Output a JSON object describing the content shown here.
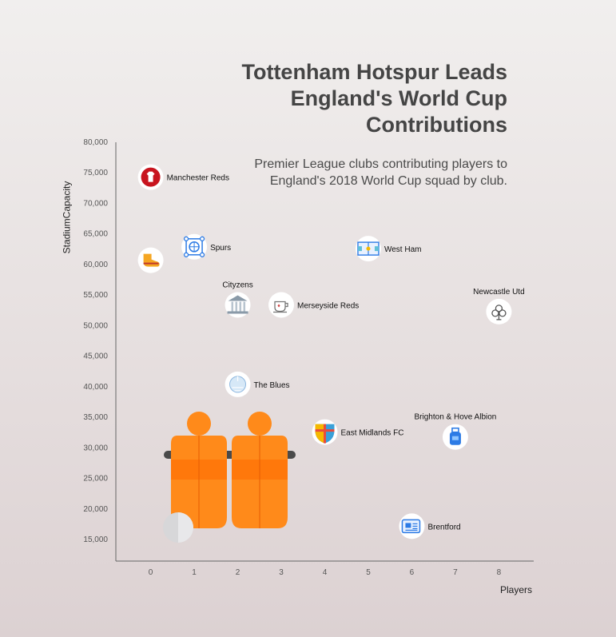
{
  "chart_data": {
    "type": "scatter",
    "title": "Tottenham Hotspur Leads England's World Cup Contributions",
    "subtitle": "Premier League clubs contributing players to England's 2018 World Cup squad by club.",
    "xlabel": "Players",
    "ylabel": "StadiumCapacity",
    "xlim": [
      -0.8,
      8.8
    ],
    "ylim": [
      11500,
      80000
    ],
    "x_ticks": [
      "0",
      "1",
      "2",
      "3",
      "4",
      "5",
      "6",
      "7",
      "8"
    ],
    "y_ticks": [
      "15,000",
      "20,000",
      "25,000",
      "30,000",
      "35,000",
      "40,000",
      "45,000",
      "50,000",
      "55,000",
      "60,000",
      "65,000",
      "70,000",
      "75,000",
      "80,000"
    ],
    "grid": false,
    "points": [
      {
        "label": "Manchester Reds",
        "x": 0,
        "y": 74300,
        "icon": "shirt-icon",
        "color": "#c8141e",
        "label_pos": "right"
      },
      {
        "label": "",
        "x": 0,
        "y": 60700,
        "icon": "boot-icon",
        "color": "#f5a623",
        "label_pos": "none"
      },
      {
        "label": "Spurs",
        "x": 1,
        "y": 62900,
        "icon": "basketball-icon",
        "color": "#2d7be5",
        "label_pos": "right"
      },
      {
        "label": "Cityzens",
        "x": 2,
        "y": 53400,
        "icon": "building-icon",
        "color": "#8a9aa8",
        "label_pos": "top"
      },
      {
        "label": "Merseyside Reds",
        "x": 3,
        "y": 53400,
        "icon": "cup-icon",
        "color": "#d04040",
        "label_pos": "right"
      },
      {
        "label": "West Ham",
        "x": 5,
        "y": 62600,
        "icon": "field-icon",
        "color": "#2d7be5",
        "label_pos": "right"
      },
      {
        "label": "Newcastle Utd",
        "x": 8,
        "y": 52300,
        "icon": "club-icon",
        "color": "#555555",
        "label_pos": "top"
      },
      {
        "label": "The Blues",
        "x": 2,
        "y": 40400,
        "icon": "ball-icon",
        "color": "#8fb8e0",
        "label_pos": "right"
      },
      {
        "label": "East Midlands FC",
        "x": 4,
        "y": 32600,
        "icon": "crest-icon",
        "color": "#e94b3c",
        "label_pos": "right"
      },
      {
        "label": "Brighton & Hove Albion",
        "x": 7,
        "y": 31800,
        "icon": "bag-icon",
        "color": "#2d7be5",
        "label_pos": "top"
      },
      {
        "label": "Brentford",
        "x": 6,
        "y": 17200,
        "icon": "newspaper-icon",
        "color": "#2d7be5",
        "label_pos": "right"
      }
    ]
  },
  "decoration": {
    "icon": "table-football-players-icon",
    "colors": [
      "#ff7a14",
      "#ff9a1f",
      "#e85d04"
    ]
  }
}
